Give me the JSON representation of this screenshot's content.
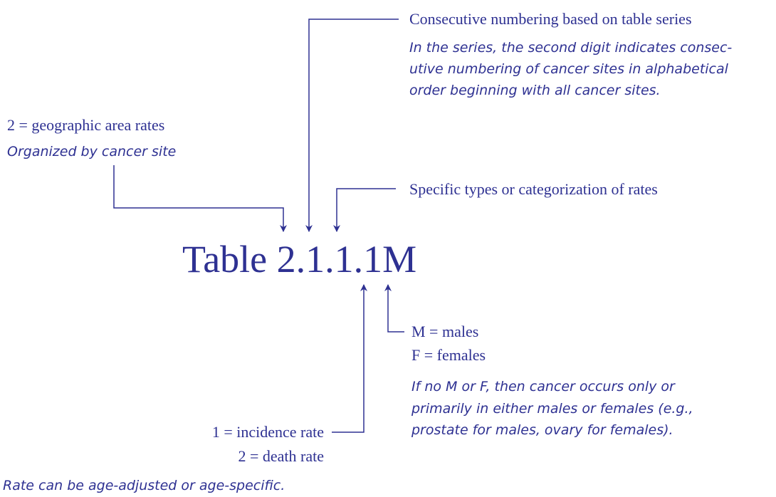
{
  "title": "Table 2.1.1.1M",
  "series_number": {
    "heading": "Consecutive numbering based on table series",
    "note": [
      "In the series, the second digit indicates consec-",
      "utive numbering of cancer sites in alphabetical",
      "order beginning with all cancer sites."
    ]
  },
  "area": {
    "heading": "2 = geographic area rates",
    "note": "Organized by cancer site"
  },
  "types": {
    "heading": "Specific types or categorization of rates"
  },
  "sex": {
    "lines": [
      "M = males",
      "F = females"
    ],
    "note": [
      "If no M or F, then cancer occurs only or",
      "primarily in either males or females (e.g.,",
      "prostate for males, ovary for females)."
    ]
  },
  "rate": {
    "lines": [
      "1 = incidence rate",
      "2 = death rate"
    ],
    "note": "Rate can be age-adjusted or age-specific."
  }
}
